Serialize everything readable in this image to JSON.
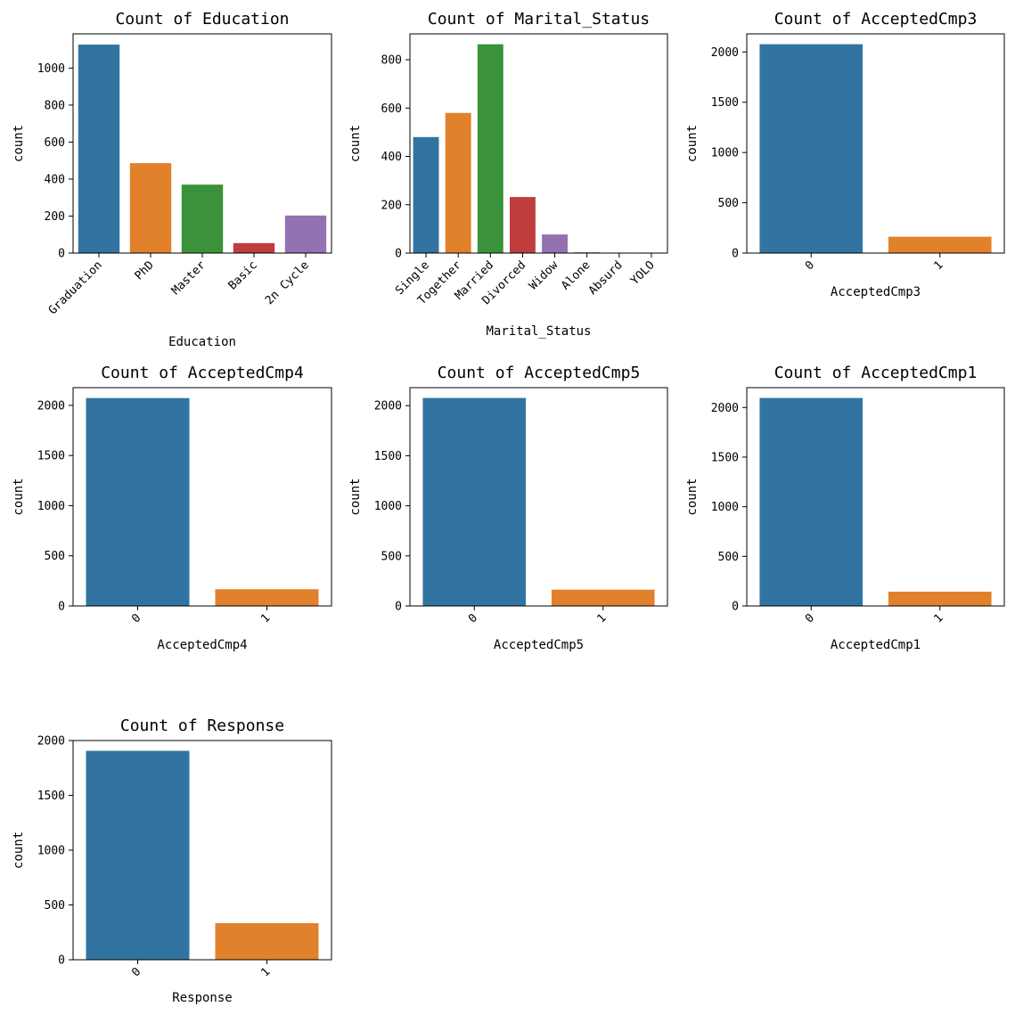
{
  "colors": {
    "palette": [
      "#3274a1",
      "#e1812c",
      "#3a923a",
      "#c03d3e",
      "#9372b2",
      "#845b53",
      "#d684bd",
      "#7f7f7f"
    ],
    "axis": "#000000",
    "background": "#ffffff"
  },
  "chart_data": [
    {
      "type": "bar",
      "title": "Count of Education",
      "xlabel": "Education",
      "ylabel": "count",
      "categories": [
        "Graduation",
        "PhD",
        "Master",
        "Basic",
        "2n Cycle"
      ],
      "values": [
        1127,
        486,
        370,
        54,
        203
      ],
      "ylim": [
        0,
        1185
      ],
      "yticks": [
        0,
        200,
        400,
        600,
        800,
        1000
      ],
      "tick_rotation": 45,
      "grid": false,
      "legend": "none"
    },
    {
      "type": "bar",
      "title": "Count of Marital_Status",
      "xlabel": "Marital_Status",
      "ylabel": "count",
      "categories": [
        "Single",
        "Together",
        "Married",
        "Divorced",
        "Widow",
        "Alone",
        "Absurd",
        "YOLO"
      ],
      "values": [
        480,
        580,
        864,
        232,
        77,
        3,
        2,
        2
      ],
      "ylim": [
        0,
        907
      ],
      "yticks": [
        0,
        200,
        400,
        600,
        800
      ],
      "tick_rotation": 45,
      "grid": false,
      "legend": "none"
    },
    {
      "type": "bar",
      "title": "Count of AcceptedCmp3",
      "xlabel": "AcceptedCmp3",
      "ylabel": "count",
      "categories": [
        "0",
        "1"
      ],
      "values": [
        2077,
        163
      ],
      "ylim": [
        0,
        2180
      ],
      "yticks": [
        0,
        500,
        1000,
        1500,
        2000
      ],
      "tick_rotation": 45,
      "grid": false,
      "legend": "none"
    },
    {
      "type": "bar",
      "title": "Count of AcceptedCmp4",
      "xlabel": "AcceptedCmp4",
      "ylabel": "count",
      "categories": [
        "0",
        "1"
      ],
      "values": [
        2073,
        167
      ],
      "ylim": [
        0,
        2177
      ],
      "yticks": [
        0,
        500,
        1000,
        1500,
        2000
      ],
      "tick_rotation": 45,
      "grid": false,
      "legend": "none"
    },
    {
      "type": "bar",
      "title": "Count of AcceptedCmp5",
      "xlabel": "AcceptedCmp5",
      "ylabel": "count",
      "categories": [
        "0",
        "1"
      ],
      "values": [
        2077,
        163
      ],
      "ylim": [
        0,
        2180
      ],
      "yticks": [
        0,
        500,
        1000,
        1500,
        2000
      ],
      "tick_rotation": 45,
      "grid": false,
      "legend": "none"
    },
    {
      "type": "bar",
      "title": "Count of AcceptedCmp1",
      "xlabel": "AcceptedCmp1",
      "ylabel": "count",
      "categories": [
        "0",
        "1"
      ],
      "values": [
        2096,
        144
      ],
      "ylim": [
        0,
        2200
      ],
      "yticks": [
        0,
        500,
        1000,
        1500,
        2000
      ],
      "tick_rotation": 45,
      "grid": false,
      "legend": "none"
    },
    {
      "type": "bar",
      "title": "Count of Response",
      "xlabel": "Response",
      "ylabel": "count",
      "categories": [
        "0",
        "1"
      ],
      "values": [
        1906,
        334
      ],
      "ylim": [
        0,
        2000
      ],
      "yticks": [
        0,
        500,
        1000,
        1500,
        2000
      ],
      "tick_rotation": 45,
      "grid": false,
      "legend": "none"
    }
  ]
}
